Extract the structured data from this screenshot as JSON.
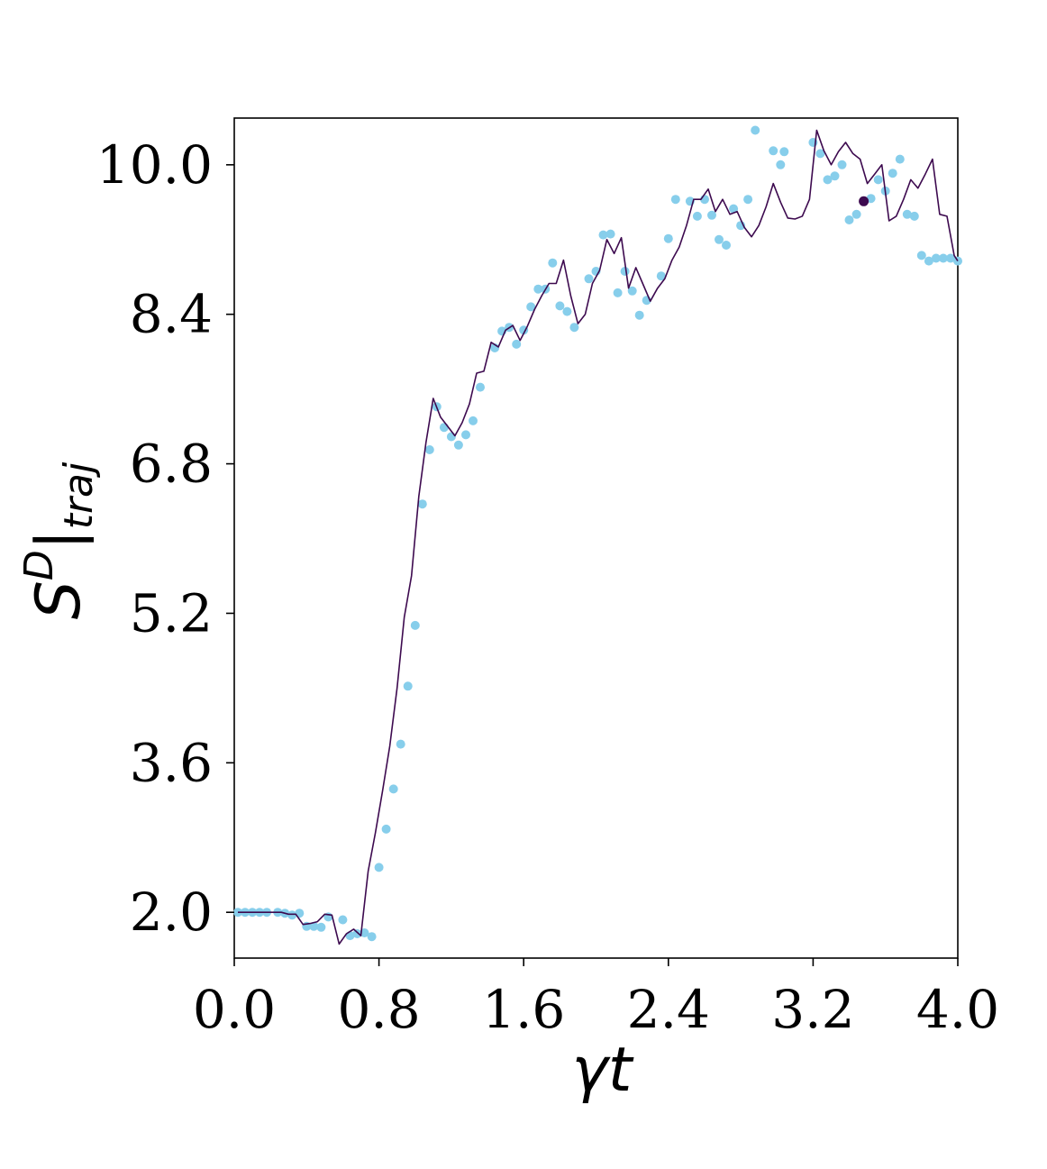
{
  "chart_data": {
    "type": "line",
    "xlabel": "γt",
    "ylabel_main": "S",
    "ylabel_sup": "D",
    "ylabel_bar": "|",
    "ylabel_sub": "traj",
    "xlim": [
      0.0,
      4.0
    ],
    "ylim": [
      1.51,
      10.5
    ],
    "xticks": [
      0.0,
      0.8,
      1.6,
      2.4,
      3.2,
      4.0
    ],
    "xtick_labels": [
      "0.0",
      "0.8",
      "1.6",
      "2.4",
      "3.2",
      "4.0"
    ],
    "yticks": [
      2.0,
      3.6,
      5.2,
      6.8,
      8.4,
      10.0
    ],
    "ytick_labels": [
      "2.0",
      "3.6",
      "5.2",
      "6.8",
      "8.4",
      "10.0"
    ],
    "grid": false,
    "colors": {
      "line": "#3d0a4f",
      "markers": "#87ceeb",
      "highlight": "#3d0a4f"
    },
    "series": [
      {
        "role": "line",
        "x": [
          0.02,
          0.06,
          0.1,
          0.14,
          0.18,
          0.22,
          0.26,
          0.3,
          0.34,
          0.38,
          0.42,
          0.46,
          0.5,
          0.54,
          0.58,
          0.62,
          0.66,
          0.7,
          0.74,
          0.78,
          0.82,
          0.86,
          0.9,
          0.94,
          0.98,
          1.02,
          1.06,
          1.1,
          1.14,
          1.18,
          1.22,
          1.26,
          1.3,
          1.34,
          1.38,
          1.42,
          1.46,
          1.5,
          1.54,
          1.58,
          1.62,
          1.66,
          1.7,
          1.74,
          1.78,
          1.82,
          1.86,
          1.9,
          1.94,
          1.98,
          2.02,
          2.06,
          2.1,
          2.14,
          2.18,
          2.22,
          2.26,
          2.3,
          2.34,
          2.38,
          2.42,
          2.46,
          2.5,
          2.54,
          2.58,
          2.62,
          2.66,
          2.7,
          2.74,
          2.78,
          2.82,
          2.86,
          2.9,
          2.94,
          2.98,
          3.02,
          3.06,
          3.1,
          3.14,
          3.18,
          3.22,
          3.26,
          3.3,
          3.34,
          3.38,
          3.42,
          3.46,
          3.5,
          3.54,
          3.58,
          3.62,
          3.66,
          3.7,
          3.74,
          3.78,
          3.82,
          3.86,
          3.9,
          3.94,
          3.98,
          4.0
        ],
        "y": [
          2.0,
          2.0,
          2.0,
          2.0,
          2.0,
          2.0,
          2.0,
          1.98,
          1.98,
          1.87,
          1.88,
          1.9,
          1.98,
          1.97,
          1.66,
          1.77,
          1.82,
          1.75,
          2.44,
          2.85,
          3.3,
          3.78,
          4.4,
          5.16,
          5.6,
          6.45,
          7.03,
          7.5,
          7.3,
          7.2,
          7.1,
          7.24,
          7.44,
          7.77,
          7.79,
          8.1,
          8.05,
          8.23,
          8.28,
          8.12,
          8.27,
          8.45,
          8.6,
          8.73,
          8.73,
          8.98,
          8.6,
          8.3,
          8.4,
          8.73,
          8.87,
          9.2,
          9.05,
          9.22,
          8.68,
          8.9,
          8.72,
          8.54,
          8.68,
          8.78,
          8.98,
          9.12,
          9.35,
          9.63,
          9.63,
          9.74,
          9.5,
          9.63,
          9.47,
          9.5,
          9.33,
          9.23,
          9.35,
          9.55,
          9.8,
          9.6,
          9.43,
          9.42,
          9.45,
          9.63,
          10.37,
          10.15,
          10.0,
          10.14,
          10.24,
          10.12,
          10.06,
          9.8,
          9.9,
          10.0,
          9.4,
          9.45,
          9.63,
          9.84,
          9.75,
          9.9,
          10.06,
          9.47,
          9.45,
          9.03,
          8.97
        ]
      },
      {
        "role": "markers",
        "x": [
          0.02,
          0.06,
          0.1,
          0.14,
          0.18,
          0.24,
          0.28,
          0.32,
          0.36,
          0.4,
          0.44,
          0.48,
          0.52,
          0.6,
          0.64,
          0.68,
          0.72,
          0.76,
          0.8,
          0.84,
          0.88,
          0.92,
          0.96,
          1.0,
          1.04,
          1.08,
          1.12,
          1.16,
          1.2,
          1.24,
          1.28,
          1.32,
          1.36,
          1.44,
          1.48,
          1.52,
          1.56,
          1.6,
          1.64,
          1.68,
          1.72,
          1.76,
          1.8,
          1.84,
          1.88,
          1.96,
          2.0,
          2.04,
          2.08,
          2.12,
          2.16,
          2.2,
          2.24,
          2.28,
          2.36,
          2.4,
          2.44,
          2.52,
          2.56,
          2.6,
          2.64,
          2.68,
          2.72,
          2.76,
          2.8,
          2.84,
          2.88,
          2.98,
          3.02,
          3.04,
          3.2,
          3.24,
          3.28,
          3.32,
          3.36,
          3.4,
          3.44,
          3.52,
          3.56,
          3.6,
          3.64,
          3.68,
          3.72,
          3.76,
          3.8,
          3.84,
          3.88,
          3.92,
          3.96,
          4.0
        ],
        "y": [
          2.0,
          2.0,
          2.0,
          2.0,
          2.0,
          2.0,
          1.99,
          1.97,
          1.99,
          1.85,
          1.85,
          1.84,
          1.95,
          1.92,
          1.75,
          1.77,
          1.78,
          1.74,
          2.48,
          2.89,
          3.32,
          3.8,
          4.42,
          5.07,
          6.37,
          6.95,
          7.41,
          7.19,
          7.09,
          7.0,
          7.11,
          7.26,
          7.62,
          8.04,
          8.22,
          8.26,
          8.08,
          8.23,
          8.48,
          8.67,
          8.67,
          8.95,
          8.49,
          8.43,
          8.26,
          8.78,
          8.86,
          9.25,
          9.26,
          8.63,
          8.86,
          8.65,
          8.39,
          8.55,
          8.81,
          9.21,
          9.63,
          9.61,
          9.45,
          9.63,
          9.46,
          9.2,
          9.14,
          9.53,
          9.35,
          9.63,
          10.37,
          10.15,
          10.0,
          10.14,
          10.24,
          10.12,
          9.84,
          9.88,
          10.0,
          9.41,
          9.47,
          9.64,
          9.84,
          9.72,
          9.91,
          10.06,
          9.47,
          9.45,
          9.03,
          8.97,
          9.0,
          9.0,
          9.0,
          8.97
        ]
      }
    ],
    "highlight_point": {
      "x": 3.48,
      "y": 9.61
    }
  }
}
